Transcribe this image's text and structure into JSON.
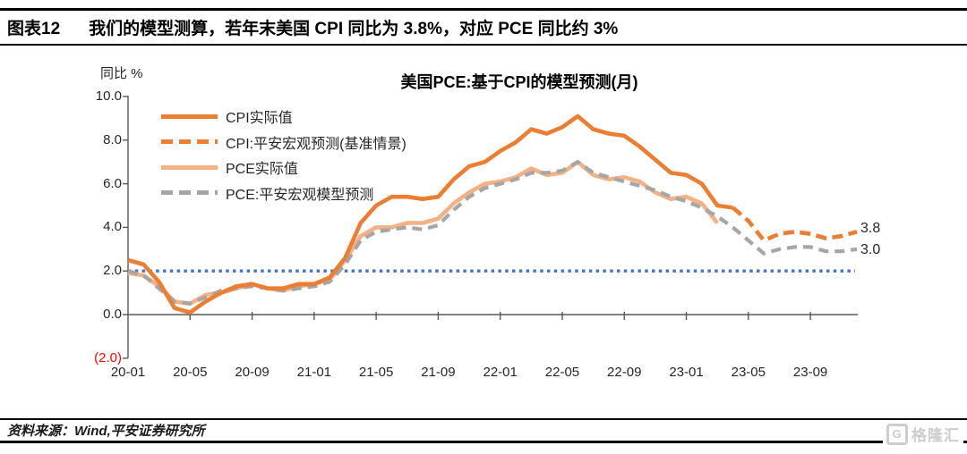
{
  "header": {
    "tag": "图表12",
    "title": "我们的模型测算，若年末美国 CPI 同比为 3.8%，对应 PCE 同比约 3%"
  },
  "footer": {
    "source": "资料来源：Wind,平安证券研究所",
    "logo_g": "G",
    "logo_text": "格隆汇"
  },
  "chart_data": {
    "type": "line",
    "title": "美国PCE:基于CPI的模型预测(月)",
    "ylabel": "同比 %",
    "ylim": [
      -2.0,
      10.0
    ],
    "grid": false,
    "legend_position": "upper-left-inside",
    "y_ticks": {
      "values": [
        10,
        8,
        6,
        4,
        2,
        0,
        -2
      ],
      "labels": [
        "10.0",
        "8.0",
        "6.0",
        "4.0",
        "2.0",
        "0.0",
        "(2.0)"
      ]
    },
    "x_start": "2020-01",
    "x_interval": "monthly",
    "n_points": 48,
    "x_tick_indices": [
      0,
      4,
      8,
      12,
      16,
      20,
      24,
      28,
      32,
      36,
      40,
      44
    ],
    "x_tick_labels": [
      "20-01",
      "20-05",
      "20-09",
      "21-01",
      "21-05",
      "21-09",
      "22-01",
      "22-05",
      "22-09",
      "23-01",
      "23-05",
      "23-09"
    ],
    "reference_line": {
      "value": 2.0,
      "color": "#4472C4",
      "style": "dotted"
    },
    "end_labels": {
      "cpi": "3.8",
      "pce": "3.0"
    },
    "series": [
      {
        "name": "CPI实际值",
        "style": "solid",
        "color": "#ED7D31",
        "start_index": 0,
        "values": [
          2.5,
          2.3,
          1.5,
          0.3,
          0.1,
          0.6,
          1.0,
          1.3,
          1.4,
          1.2,
          1.2,
          1.4,
          1.4,
          1.7,
          2.6,
          4.2,
          5.0,
          5.4,
          5.4,
          5.3,
          5.4,
          6.2,
          6.8,
          7.0,
          7.5,
          7.9,
          8.5,
          8.3,
          8.6,
          9.1,
          8.5,
          8.3,
          8.2,
          7.7,
          7.1,
          6.5,
          6.4,
          6.0,
          5.0,
          4.9
        ]
      },
      {
        "name": "CPI:平安宏观预测(基准情景)",
        "style": "dashed",
        "color": "#ED7D31",
        "start_index": 39,
        "values": [
          4.9,
          4.3,
          3.4,
          3.7,
          3.8,
          3.7,
          3.5,
          3.6,
          3.8
        ]
      },
      {
        "name": "PCE实际值",
        "style": "solid",
        "color": "#F4B183",
        "start_index": 0,
        "values": [
          1.9,
          1.8,
          1.3,
          0.6,
          0.5,
          0.9,
          1.0,
          1.2,
          1.4,
          1.2,
          1.1,
          1.3,
          1.4,
          1.6,
          2.5,
          3.6,
          4.0,
          4.0,
          4.2,
          4.2,
          4.4,
          5.1,
          5.6,
          6.0,
          6.1,
          6.3,
          6.7,
          6.4,
          6.5,
          7.0,
          6.4,
          6.2,
          6.3,
          6.1,
          5.6,
          5.3,
          5.4,
          5.1,
          4.2
        ]
      },
      {
        "name": "PCE:平安宏观模型预测",
        "style": "dashed",
        "color": "#A6A6A6",
        "start_index": 0,
        "values": [
          2.0,
          1.8,
          1.2,
          0.6,
          0.5,
          0.8,
          1.1,
          1.2,
          1.3,
          1.2,
          1.1,
          1.2,
          1.3,
          1.5,
          2.3,
          3.4,
          3.8,
          3.9,
          4.0,
          3.9,
          4.1,
          4.8,
          5.4,
          5.8,
          6.0,
          6.2,
          6.5,
          6.5,
          6.6,
          7.0,
          6.5,
          6.3,
          6.1,
          5.9,
          5.7,
          5.4,
          5.2,
          4.9,
          4.5,
          4.0,
          3.4,
          2.8,
          3.0,
          3.1,
          3.1,
          2.9,
          2.9,
          3.0
        ]
      }
    ]
  }
}
